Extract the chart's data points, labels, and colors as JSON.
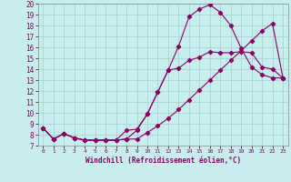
{
  "xlabel": "Windchill (Refroidissement éolien,°C)",
  "xlim": [
    -0.5,
    23.5
  ],
  "ylim": [
    7,
    20
  ],
  "xticks": [
    0,
    1,
    2,
    3,
    4,
    5,
    6,
    7,
    8,
    9,
    10,
    11,
    12,
    13,
    14,
    15,
    16,
    17,
    18,
    19,
    20,
    21,
    22,
    23
  ],
  "yticks": [
    7,
    8,
    9,
    10,
    11,
    12,
    13,
    14,
    15,
    16,
    17,
    18,
    19,
    20
  ],
  "bg_color": "#c8eded",
  "grid_color": "#a8d4d4",
  "line_color": "#880066",
  "curve1_x": [
    0,
    1,
    2,
    3,
    4,
    5,
    6,
    7,
    8,
    9,
    10,
    11,
    12,
    13,
    14,
    15,
    16,
    17,
    18,
    19,
    20,
    21,
    22,
    23
  ],
  "curve1_y": [
    8.6,
    7.6,
    8.1,
    7.7,
    7.5,
    7.5,
    7.5,
    7.5,
    7.6,
    8.4,
    9.9,
    11.9,
    13.9,
    16.1,
    18.8,
    19.5,
    19.9,
    19.2,
    18.0,
    15.9,
    14.2,
    13.5,
    13.2,
    13.2
  ],
  "curve2_x": [
    0,
    1,
    2,
    3,
    4,
    5,
    6,
    7,
    8,
    9,
    10,
    11,
    12,
    13,
    14,
    15,
    16,
    17,
    18,
    19,
    20,
    21,
    22,
    23
  ],
  "curve2_y": [
    8.6,
    7.6,
    8.1,
    7.7,
    7.5,
    7.5,
    7.5,
    7.5,
    8.4,
    8.5,
    9.9,
    11.9,
    13.9,
    14.1,
    14.8,
    15.1,
    15.6,
    15.5,
    15.5,
    15.6,
    15.5,
    14.2,
    14.0,
    13.2
  ],
  "curve3_x": [
    0,
    1,
    2,
    3,
    4,
    5,
    6,
    7,
    8,
    9,
    10,
    11,
    12,
    13,
    14,
    15,
    16,
    17,
    18,
    19,
    20,
    21,
    22,
    23
  ],
  "curve3_y": [
    8.6,
    7.6,
    8.1,
    7.7,
    7.5,
    7.5,
    7.5,
    7.5,
    7.6,
    7.6,
    8.2,
    8.8,
    9.5,
    10.3,
    11.2,
    12.1,
    13.0,
    13.9,
    14.8,
    15.7,
    16.6,
    17.5,
    18.2,
    13.2
  ]
}
